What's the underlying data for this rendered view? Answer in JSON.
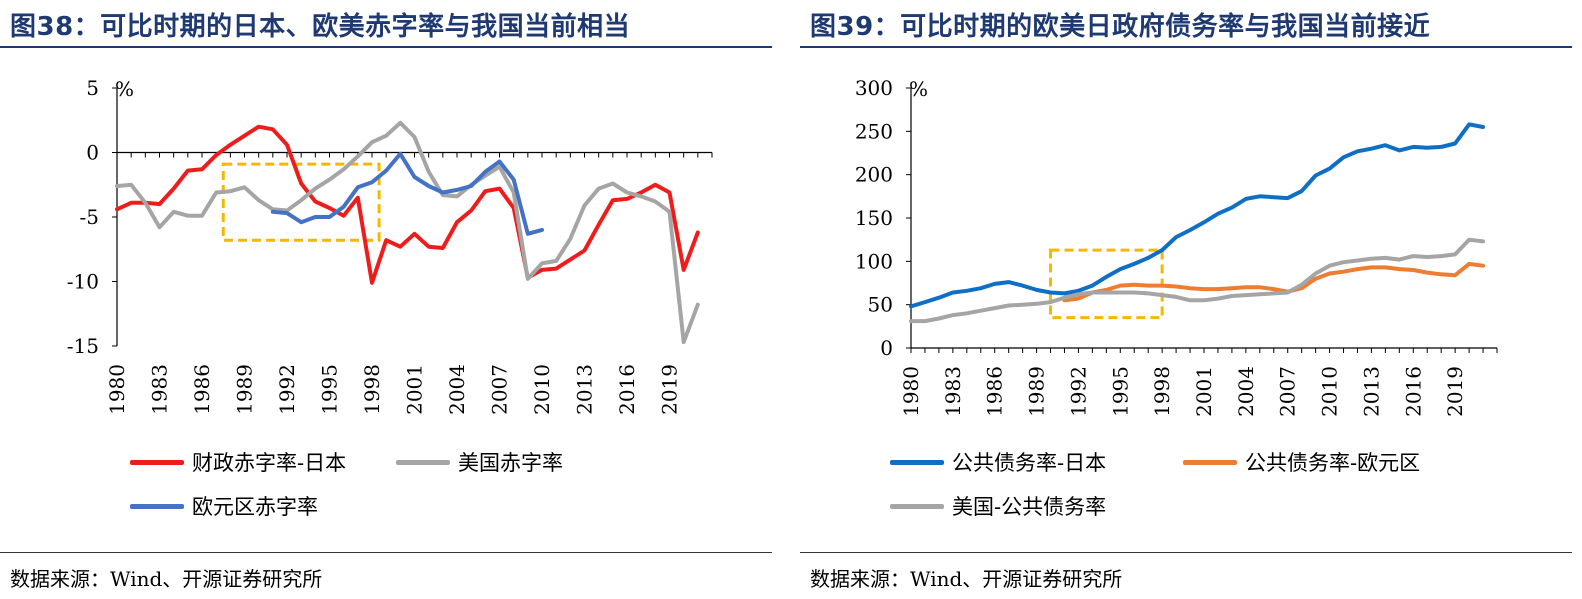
{
  "panels": [
    {
      "title": "图38：可比时期的日本、欧美赤字率与我国当前相当",
      "source": "数据来源：Wind、开源证券研究所"
    },
    {
      "title": "图39：可比时期的欧美日政府债务率与我国当前接近",
      "source": "数据来源：Wind、开源证券研究所"
    }
  ],
  "chart_data": [
    {
      "type": "line",
      "ylabel": "%",
      "ylim": [
        -15,
        5
      ],
      "yticks": [
        5,
        0,
        -5,
        -10,
        -15
      ],
      "xlim": [
        1980,
        2022
      ],
      "xticks": [
        1980,
        1983,
        1986,
        1989,
        1992,
        1995,
        1998,
        2001,
        2004,
        2007,
        2010,
        2013,
        2016,
        2019
      ],
      "highlight_box": {
        "x": [
          1987.5,
          1998.5
        ],
        "y": [
          -6.8,
          -0.9
        ],
        "color": "#f5b800"
      },
      "legend_position": "bottom",
      "series": [
        {
          "name": "财政赤字率-日本",
          "color": "#ef1c1c",
          "x": [
            1980,
            1981,
            1982,
            1983,
            1984,
            1985,
            1986,
            1987,
            1988,
            1989,
            1990,
            1991,
            1992,
            1993,
            1994,
            1995,
            1996,
            1997,
            1998,
            1999,
            2000,
            2001,
            2002,
            2003,
            2004,
            2005,
            2006,
            2007,
            2008,
            2009,
            2010,
            2011,
            2012,
            2013,
            2014,
            2015,
            2016,
            2017,
            2018,
            2019,
            2020,
            2021
          ],
          "y": [
            -4.4,
            -3.9,
            -3.9,
            -4.0,
            -2.8,
            -1.4,
            -1.3,
            -0.2,
            0.6,
            1.3,
            2.0,
            1.8,
            0.6,
            -2.4,
            -3.8,
            -4.3,
            -4.9,
            -3.5,
            -10.1,
            -6.8,
            -7.3,
            -6.3,
            -7.3,
            -7.4,
            -5.4,
            -4.5,
            -3.0,
            -2.8,
            -4.3,
            -9.7,
            -9.1,
            -9.0,
            -8.3,
            -7.6,
            -5.6,
            -3.7,
            -3.6,
            -3.1,
            -2.5,
            -3.1,
            -9.1,
            -6.2
          ]
        },
        {
          "name": "美国赤字率",
          "color": "#a5a5a5",
          "x": [
            1980,
            1981,
            1982,
            1983,
            1984,
            1985,
            1986,
            1987,
            1988,
            1989,
            1990,
            1991,
            1992,
            1993,
            1994,
            1995,
            1996,
            1997,
            1998,
            1999,
            2000,
            2001,
            2002,
            2003,
            2004,
            2005,
            2006,
            2007,
            2008,
            2009,
            2010,
            2011,
            2012,
            2013,
            2014,
            2015,
            2016,
            2017,
            2018,
            2019,
            2020,
            2021
          ],
          "y": [
            -2.6,
            -2.5,
            -3.9,
            -5.8,
            -4.6,
            -4.9,
            -4.9,
            -3.1,
            -3.0,
            -2.7,
            -3.7,
            -4.4,
            -4.5,
            -3.7,
            -2.8,
            -2.1,
            -1.3,
            -0.3,
            0.8,
            1.3,
            2.3,
            1.2,
            -1.5,
            -3.3,
            -3.4,
            -2.5,
            -1.8,
            -1.1,
            -3.1,
            -9.8,
            -8.6,
            -8.4,
            -6.7,
            -4.1,
            -2.8,
            -2.4,
            -3.1,
            -3.4,
            -3.8,
            -4.6,
            -14.7,
            -11.8
          ]
        },
        {
          "name": "欧元区赤字率",
          "color": "#4472c4",
          "x": [
            1991,
            1992,
            1993,
            1994,
            1995,
            1996,
            1997,
            1998,
            1999,
            2000,
            2001,
            2002,
            2003,
            2004,
            2005,
            2006,
            2007,
            2008,
            2009,
            2010
          ],
          "y": [
            -4.6,
            -4.7,
            -5.4,
            -5.0,
            -5.0,
            -4.2,
            -2.7,
            -2.3,
            -1.4,
            -0.1,
            -1.9,
            -2.6,
            -3.1,
            -2.9,
            -2.6,
            -1.5,
            -0.7,
            -2.1,
            -6.3,
            -6.0
          ]
        }
      ]
    },
    {
      "type": "line",
      "ylabel": "%",
      "ylim": [
        0,
        300
      ],
      "yticks": [
        300,
        250,
        200,
        150,
        100,
        50,
        0
      ],
      "xlim": [
        1980,
        2022
      ],
      "xticks": [
        1980,
        1983,
        1986,
        1989,
        1992,
        1995,
        1998,
        2001,
        2004,
        2007,
        2010,
        2013,
        2016,
        2019
      ],
      "highlight_box": {
        "x": [
          1990,
          1998
        ],
        "y": [
          35,
          113
        ],
        "color": "#f5b800"
      },
      "legend_position": "bottom",
      "series": [
        {
          "name": "公共债务率-日本",
          "color": "#0f6fc6",
          "x": [
            1980,
            1981,
            1982,
            1983,
            1984,
            1985,
            1986,
            1987,
            1988,
            1989,
            1990,
            1991,
            1992,
            1993,
            1994,
            1995,
            1996,
            1997,
            1998,
            1999,
            2000,
            2001,
            2002,
            2003,
            2004,
            2005,
            2006,
            2007,
            2008,
            2009,
            2010,
            2011,
            2012,
            2013,
            2014,
            2015,
            2016,
            2017,
            2018,
            2019,
            2020,
            2021
          ],
          "y": [
            48,
            53,
            58,
            64,
            66,
            69,
            74,
            76,
            72,
            67,
            64,
            63,
            66,
            72,
            82,
            91,
            97,
            104,
            113,
            128,
            136,
            145,
            155,
            162,
            172,
            175,
            174,
            173,
            181,
            199,
            207,
            220,
            227,
            230,
            234,
            228,
            232,
            231,
            232,
            236,
            258,
            255
          ]
        },
        {
          "name": "公共债务率-欧元区",
          "color": "#ed7d31",
          "x": [
            1991,
            1992,
            1993,
            1994,
            1995,
            1996,
            1997,
            1998,
            1999,
            2000,
            2001,
            2002,
            2003,
            2004,
            2005,
            2006,
            2007,
            2008,
            2009,
            2010,
            2011,
            2012,
            2013,
            2014,
            2015,
            2016,
            2017,
            2018,
            2019,
            2020,
            2021
          ],
          "y": [
            55,
            57,
            64,
            67,
            72,
            73,
            72,
            72,
            71,
            69,
            68,
            68,
            69,
            70,
            70,
            68,
            65,
            69,
            80,
            86,
            88,
            91,
            93,
            93,
            91,
            90,
            87,
            85,
            84,
            97,
            95
          ]
        },
        {
          "name": "美国-公共债务率",
          "color": "#a5a5a5",
          "x": [
            1980,
            1981,
            1982,
            1983,
            1984,
            1985,
            1986,
            1987,
            1988,
            1989,
            1990,
            1991,
            1992,
            1993,
            1994,
            1995,
            1996,
            1997,
            1998,
            1999,
            2000,
            2001,
            2002,
            2003,
            2004,
            2005,
            2006,
            2007,
            2008,
            2009,
            2010,
            2011,
            2012,
            2013,
            2014,
            2015,
            2016,
            2017,
            2018,
            2019,
            2020,
            2021
          ],
          "y": [
            31,
            31,
            34,
            38,
            40,
            43,
            46,
            49,
            50,
            51,
            53,
            58,
            62,
            64,
            64,
            64,
            64,
            63,
            61,
            59,
            55,
            55,
            57,
            60,
            61,
            62,
            63,
            64,
            73,
            86,
            95,
            99,
            101,
            103,
            104,
            102,
            106,
            105,
            106,
            108,
            125,
            123
          ]
        }
      ]
    }
  ]
}
